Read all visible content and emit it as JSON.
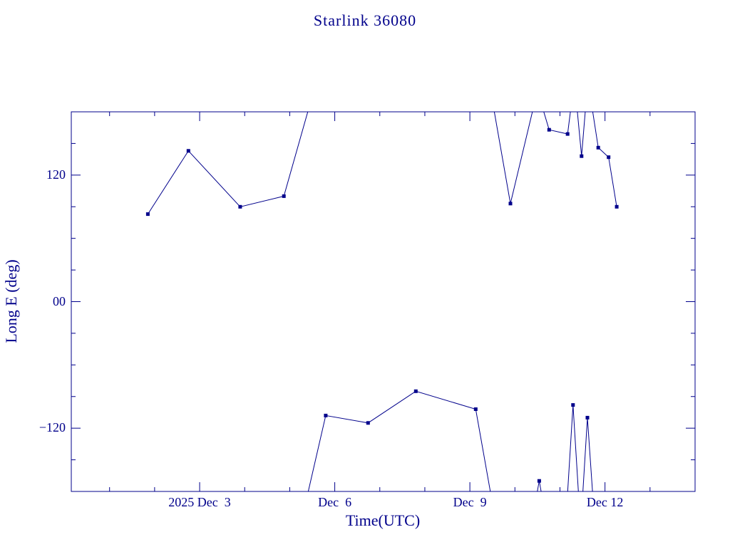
{
  "page": {
    "background": "#ffffff"
  },
  "chart_data": {
    "type": "line",
    "title": "Starlink 36080",
    "xlabel": "Time(UTC)",
    "ylabel": "Long E (deg)",
    "line_color": "#00008b",
    "axis_color": "#00008b",
    "text_color": "#00008b",
    "marker": "filled-square",
    "grid": false,
    "legend": null,
    "xlim": [
      0.15,
      14.0
    ],
    "ylim": [
      -180,
      180
    ],
    "xticks": [
      {
        "value": 3,
        "label": "2025 Dec  3"
      },
      {
        "value": 6,
        "label": "Dec  6"
      },
      {
        "value": 9,
        "label": "Dec  9"
      },
      {
        "value": 12,
        "label": "Dec 12"
      }
    ],
    "x_minor_step": 1,
    "yticks": [
      {
        "value": 120,
        "label": "120"
      },
      {
        "value": 0,
        "label": "00"
      },
      {
        "value": -120,
        "label": "−120"
      }
    ],
    "y_minor_step": 30,
    "segments": [
      {
        "name": "upper-left-branch",
        "points": [
          [
            1.85,
            83
          ],
          [
            2.75,
            143
          ],
          [
            3.9,
            90
          ],
          [
            4.87,
            100
          ],
          [
            5.6,
            210
          ]
        ]
      },
      {
        "name": "lower-middle-branch",
        "points": [
          [
            5.25,
            -210
          ],
          [
            5.8,
            -108
          ],
          [
            6.74,
            -115
          ],
          [
            7.8,
            -85
          ],
          [
            9.13,
            -102
          ],
          [
            9.6,
            -215
          ]
        ]
      },
      {
        "name": "upper-right-branch",
        "points": [
          [
            9.42,
            210
          ],
          [
            9.9,
            93
          ],
          [
            10.5,
            200
          ],
          [
            10.76,
            163
          ],
          [
            11.17,
            159
          ],
          [
            11.32,
            210
          ],
          [
            11.48,
            138
          ],
          [
            11.62,
            210
          ],
          [
            11.85,
            146
          ],
          [
            12.08,
            137
          ],
          [
            12.26,
            90
          ]
        ]
      },
      {
        "name": "bottom-notch",
        "points": [
          [
            10.35,
            -215
          ],
          [
            10.54,
            -170
          ],
          [
            10.73,
            -215
          ]
        ]
      },
      {
        "name": "bottom-spike-1",
        "points": [
          [
            11.12,
            -215
          ],
          [
            11.29,
            -98
          ],
          [
            11.46,
            -215
          ]
        ]
      },
      {
        "name": "bottom-spike-2",
        "points": [
          [
            11.46,
            -215
          ],
          [
            11.61,
            -110
          ],
          [
            11.78,
            -215
          ]
        ]
      }
    ]
  }
}
